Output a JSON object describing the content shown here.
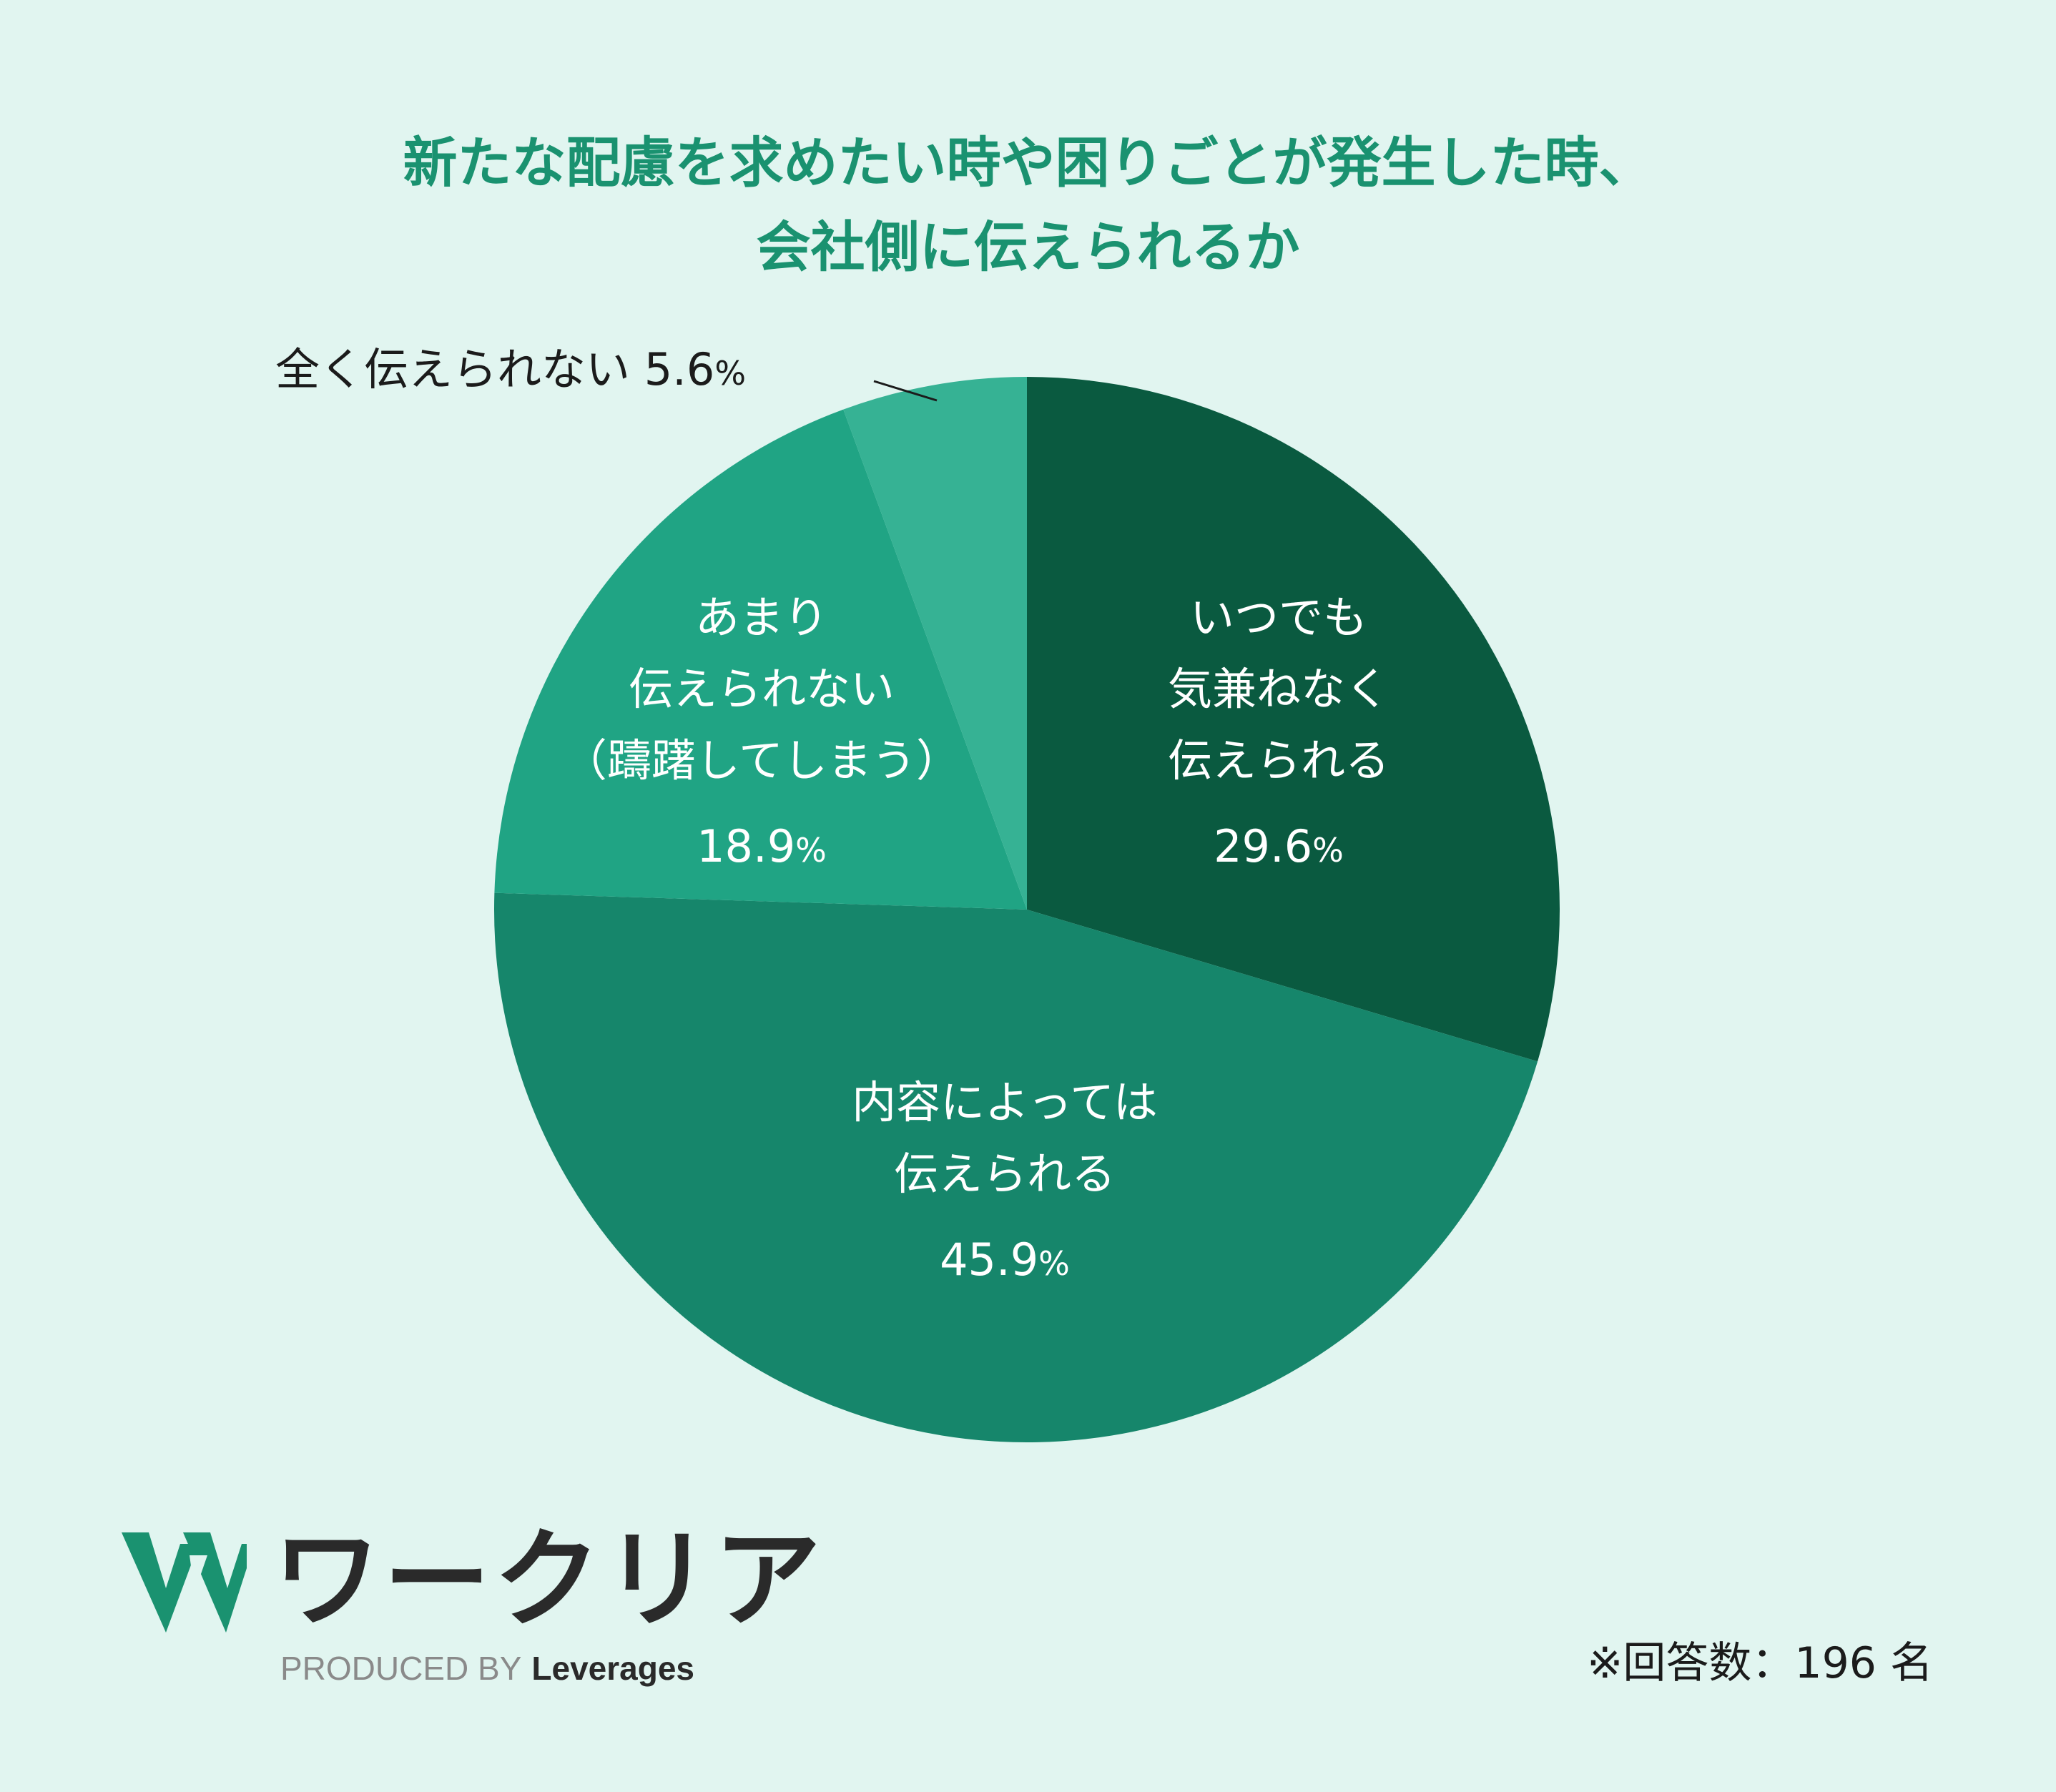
{
  "title": {
    "line1": "新たな配慮を求めたい時や困りごとが発生した時、",
    "line2": "会社側に伝えられるか"
  },
  "chart_data": {
    "type": "pie",
    "title": "新たな配慮を求めたい時や困りごとが発生した時、会社側に伝えられるか",
    "unit": "%",
    "slices": [
      {
        "label_lines": [
          "いつでも",
          "気兼ねなく",
          "伝えられる"
        ],
        "value": 29.6,
        "value_text": "29.6",
        "color": "#0a5a40"
      },
      {
        "label_lines": [
          "内容によっては",
          "伝えられる"
        ],
        "value": 45.9,
        "value_text": "45.9",
        "color": "#16866b"
      },
      {
        "label_lines": [
          "あまり",
          "伝えられない",
          "（躊躇してしまう）"
        ],
        "value": 18.9,
        "value_text": "18.9",
        "color": "#20a484"
      },
      {
        "label_lines": [
          "全く伝えられない"
        ],
        "value": 5.6,
        "value_text": "5.6",
        "color": "#36b294"
      }
    ],
    "start": "12 o'clock",
    "direction": "clockwise",
    "label_color": "#ffffff",
    "outer_label_color": "#1b1b1b"
  },
  "logo": {
    "name": "ワークリア",
    "produced_by": "PRODUCED BY",
    "brand": "Leverages",
    "mark_color": "#1a9270"
  },
  "note": "※回答数：196 名"
}
